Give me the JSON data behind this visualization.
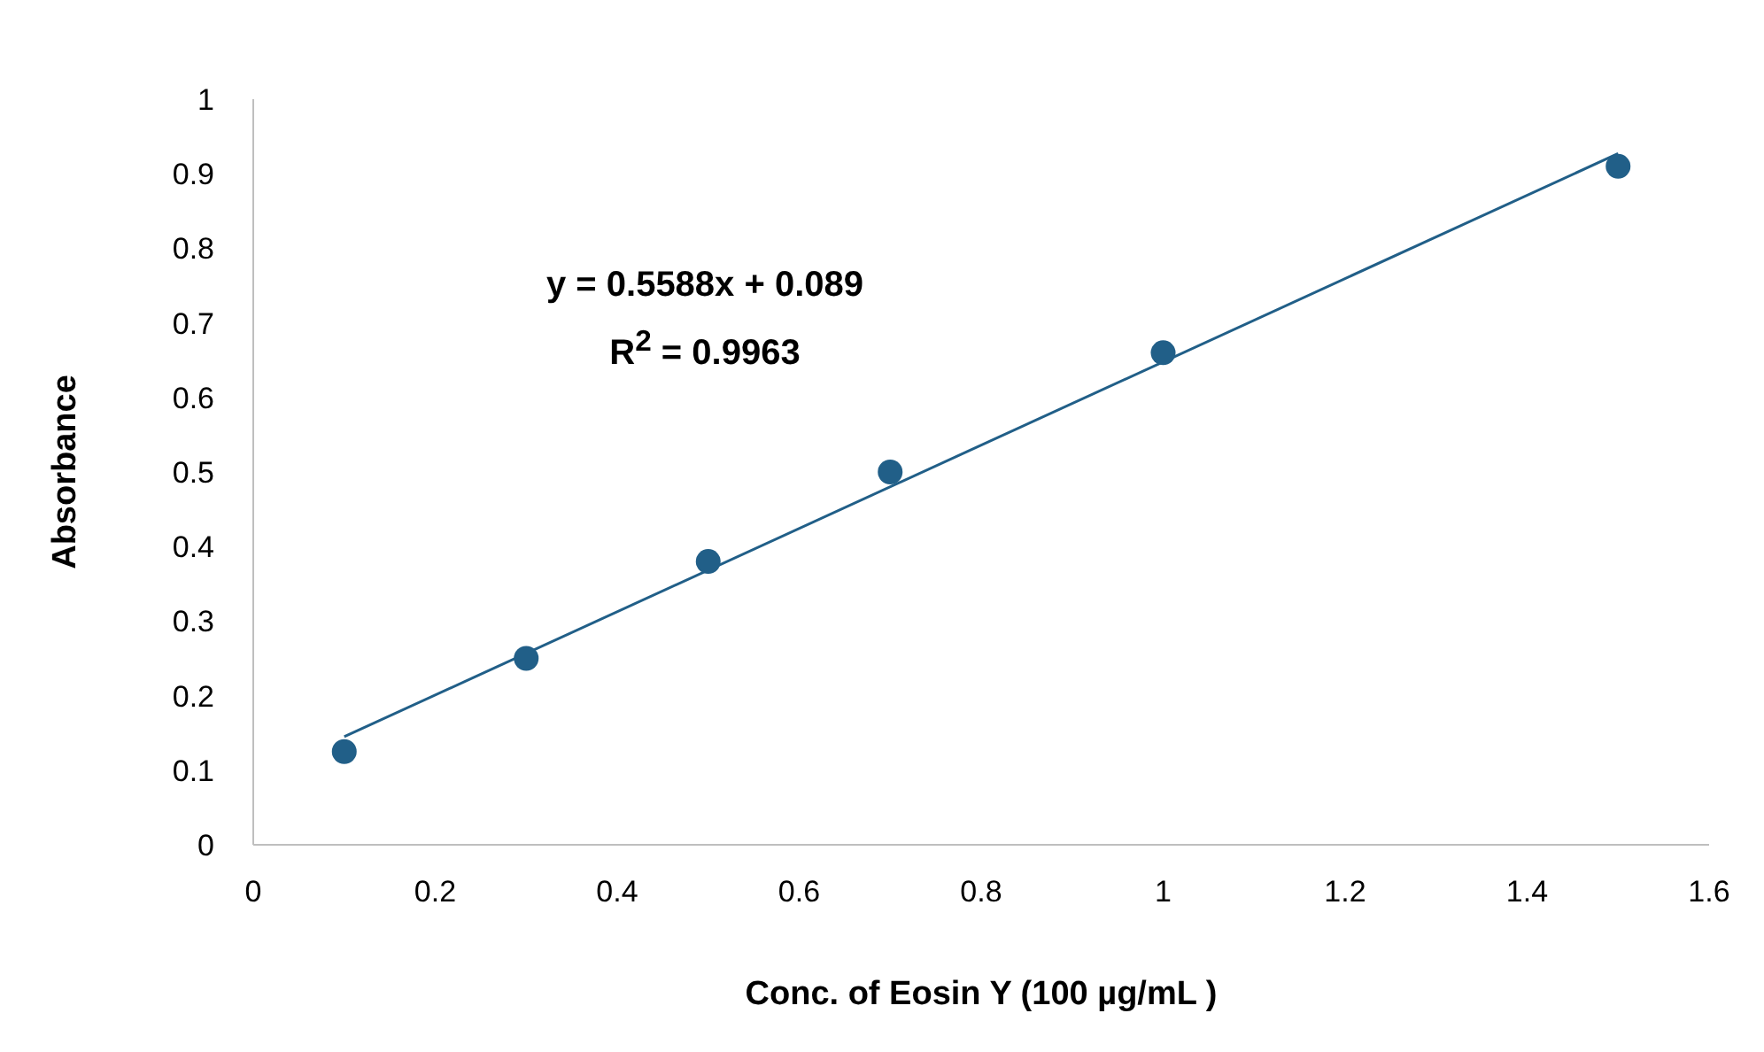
{
  "chart_data": {
    "type": "scatter",
    "xlabel": "Conc. of Eosin Y (100 µg/mL )",
    "ylabel": "Absorbance",
    "xlim": [
      0,
      1.6
    ],
    "xticks": [
      0,
      0.2,
      0.4,
      0.6,
      0.8,
      1,
      1.2,
      1.4,
      1.6
    ],
    "ylim": [
      0,
      1
    ],
    "yticks": [
      0,
      0.1,
      0.2,
      0.3,
      0.4,
      0.5,
      0.6,
      0.7,
      0.8,
      0.9,
      1
    ],
    "grid": false,
    "annotations": [
      "y = 0.5588x + 0.089",
      "R$^{2}$ = 0.9963"
    ],
    "series": [
      {
        "marker": "circle",
        "color": "#215f88",
        "x": [
          0.1,
          0.3,
          0.5,
          0.7,
          1,
          1.5
        ],
        "values": [
          0.125,
          0.25,
          0.38,
          0.5,
          0.66,
          0.91
        ]
      },
      {
        "type": "line",
        "marker": "none",
        "color": "#215f88",
        "x": [
          0.1,
          1.5
        ],
        "values": [
          0.145,
          0.927
        ]
      }
    ]
  }
}
